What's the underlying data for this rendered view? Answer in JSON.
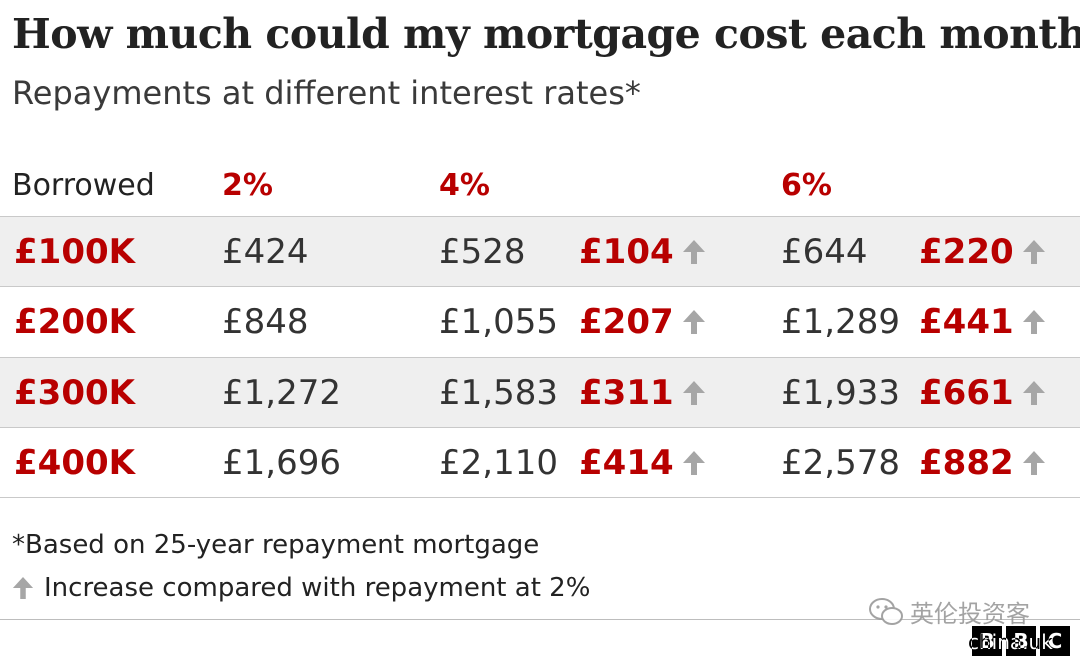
{
  "title": "How much could my mortgage cost each month?",
  "subtitle": "Repayments at different interest rates*",
  "colors": {
    "accent": "#b80000",
    "arrow": "#a6a6a6",
    "row_shade": "#efefef"
  },
  "table": {
    "header_borrowed": "Borrowed",
    "rates": [
      "2%",
      "4%",
      "6%"
    ],
    "rows": [
      {
        "borrowed": "£100K",
        "r2": "£424",
        "r4": "£528",
        "inc4": "£104",
        "r6": "£644",
        "inc6": "£220"
      },
      {
        "borrowed": "£200K",
        "r2": "£848",
        "r4": "£1,055",
        "inc4": "£207",
        "r6": "£1,289",
        "inc6": "£441"
      },
      {
        "borrowed": "£300K",
        "r2": "£1,272",
        "r4": "£1,583",
        "inc4": "£311",
        "r6": "£1,933",
        "inc6": "£661"
      },
      {
        "borrowed": "£400K",
        "r2": "£1,696",
        "r4": "£2,110",
        "inc4": "£414",
        "r6": "£2,578",
        "inc6": "£882"
      }
    ]
  },
  "notes": {
    "footnote": "*Based on 25-year repayment mortgage",
    "legend": "Increase compared with repayment at 2%",
    "legend_icon": "up-arrow-icon"
  },
  "watermark": "英伦投资客",
  "logo": {
    "letters": [
      "B",
      "B",
      "C"
    ],
    "text": "china.uk"
  },
  "chart_data": {
    "type": "table",
    "title": "How much could my mortgage cost each month?",
    "subtitle": "Repayments at different interest rates*",
    "columns": [
      "Borrowed",
      "2%",
      "4%",
      "4% increase vs 2%",
      "6%",
      "6% increase vs 2%"
    ],
    "rows": [
      [
        "£100K",
        424,
        528,
        104,
        644,
        220
      ],
      [
        "£200K",
        848,
        1055,
        207,
        1289,
        441
      ],
      [
        "£300K",
        1272,
        1583,
        311,
        1933,
        661
      ],
      [
        "£400K",
        1696,
        2110,
        414,
        2578,
        882
      ]
    ],
    "annotations": [
      "*Based on 25-year repayment mortgage",
      "Increase compared with repayment at 2%"
    ]
  }
}
